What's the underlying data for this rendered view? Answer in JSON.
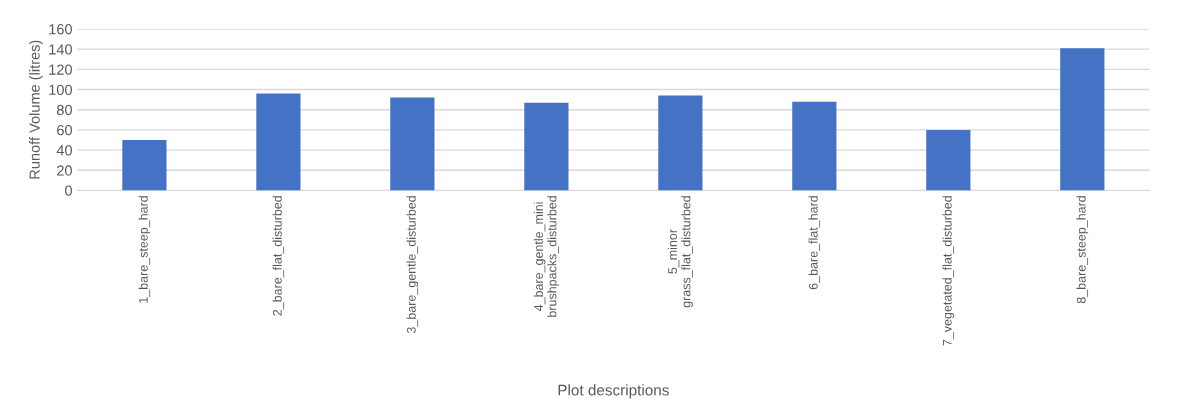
{
  "chart_data": {
    "type": "bar",
    "xlabel": "Plot descriptions",
    "ylabel": "Runoff Volume (litres)",
    "categories": [
      "1_bare_steep_hard",
      "2_bare_flat_disturbed",
      "3_bare_gentle_disturbed",
      "4_bare_gentle_mini\nbrushpacks_disturbed",
      "5_minor\ngrass_flat_disturbed",
      "6_bare_flat_hard",
      "7_vegetated_flat_disturbed",
      "8_bare_steep_hard"
    ],
    "values": [
      50,
      96,
      92,
      87,
      94,
      88,
      60,
      141
    ],
    "color": "#4472c4",
    "ylim": [
      0,
      160
    ],
    "yticks": [
      0,
      20,
      40,
      60,
      80,
      100,
      120,
      140,
      160
    ],
    "grid": "y"
  }
}
